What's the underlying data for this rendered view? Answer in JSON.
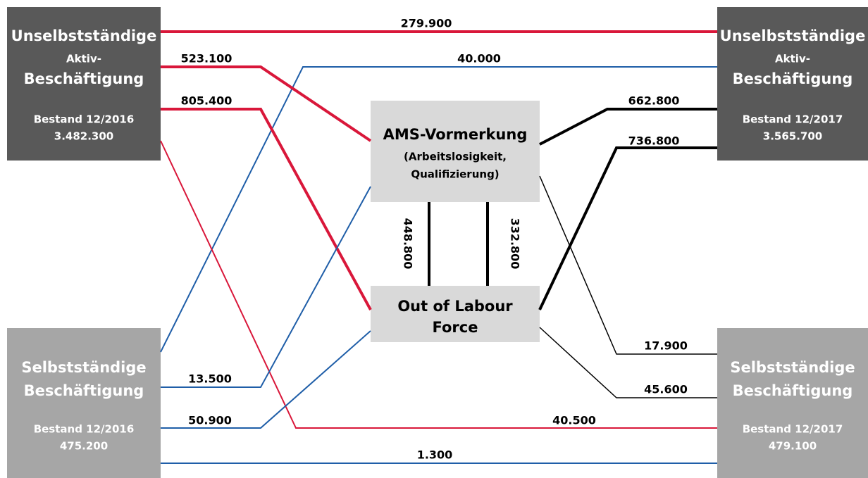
{
  "nodes": [
    {
      "lines": [
        "Unselbstständige",
        "Aktiv-",
        "Beschäftigung",
        "Bestand 12/2016",
        "3.482.300"
      ]
    },
    {
      "lines": [
        "Unselbstständige",
        "Aktiv-",
        "Beschäftigung",
        "Bestand 12/2017",
        "3.565.700"
      ]
    },
    {
      "lines": [
        "Selbstständige",
        "Beschäftigung",
        "Bestand 12/2016",
        "475.200"
      ]
    },
    {
      "lines": [
        "Selbstständige",
        "Beschäftigung",
        "Bestand 12/2017",
        "479.100"
      ]
    },
    {
      "lines": [
        "AMS-Vormerkung",
        "(Arbeitslosigkeit,",
        "Qualifizierung)"
      ]
    },
    {
      "lines": [
        "Out of Labour",
        "Force"
      ]
    }
  ],
  "flows": [
    "279.900",
    "40.000",
    "523.100",
    "805.400",
    "40.500",
    "13.500",
    "50.900",
    "1.300",
    "662.800",
    "736.800",
    "17.900",
    "45.600",
    "448.800",
    "332.800"
  ]
}
